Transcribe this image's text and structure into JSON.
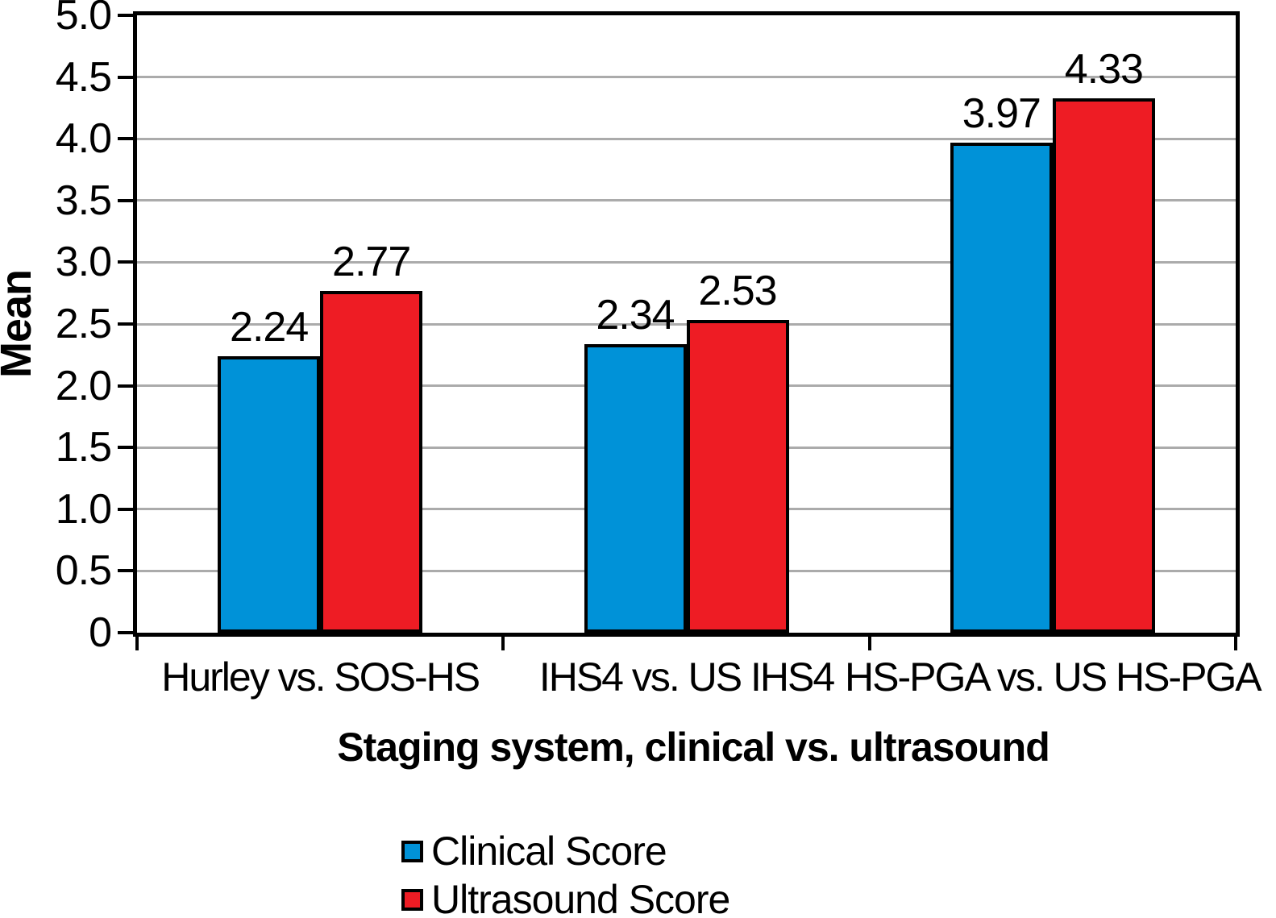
{
  "chart_data": {
    "type": "bar",
    "title": "",
    "categories": [
      "Hurley vs. SOS-HS",
      "IHS4 vs. US IHS4",
      "HS-PGA vs. US HS-PGA"
    ],
    "series": [
      {
        "name": "Clinical Score",
        "color": "#0092D8",
        "values": [
          2.24,
          2.34,
          3.97
        ],
        "labels": [
          "2.24",
          "2.34",
          "3.97"
        ]
      },
      {
        "name": "Ultrasound Score",
        "color": "#EE1C24",
        "values": [
          2.77,
          2.53,
          4.33
        ],
        "labels": [
          "2.77",
          "2.53",
          "4.33"
        ]
      }
    ],
    "xlabel": "Staging system, clinical vs. ultrasound",
    "ylabel": "Mean",
    "ylim": [
      0,
      5
    ],
    "ytick_labels": [
      "5.0",
      "4.5",
      "4.0",
      "3.5",
      "3.0",
      "2.5",
      "2.0",
      "1.5",
      "1.0",
      "0.5",
      "0"
    ],
    "grid": true,
    "gridline_color": "#ABABAB",
    "axis_color": "#000000",
    "data_labels": true,
    "legend_position": "bottom"
  }
}
